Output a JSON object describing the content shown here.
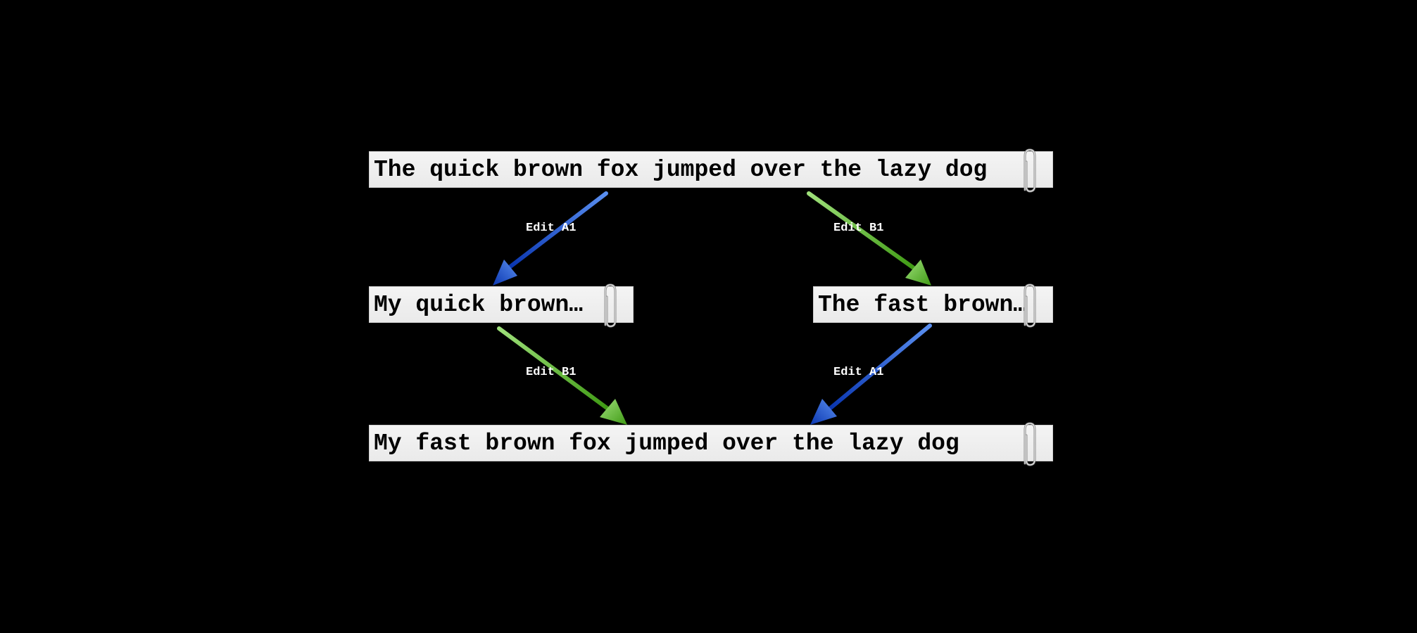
{
  "strips": {
    "original": "The quick brown fox jumped over the lazy dog",
    "version_a": "My quick brown…",
    "version_b": "The fast brown…",
    "merged": "My fast brown fox jumped over the lazy dog"
  },
  "edits": {
    "a1_top": "Edit A1",
    "b1_top": "Edit B1",
    "b1_bottom": "Edit B1",
    "a1_bottom": "Edit A1"
  },
  "colors": {
    "background": "#000000",
    "edit_a": "#1e4fd0",
    "edit_b": "#5fbf3a"
  },
  "icons": {
    "attachment": "paperclip-icon"
  }
}
